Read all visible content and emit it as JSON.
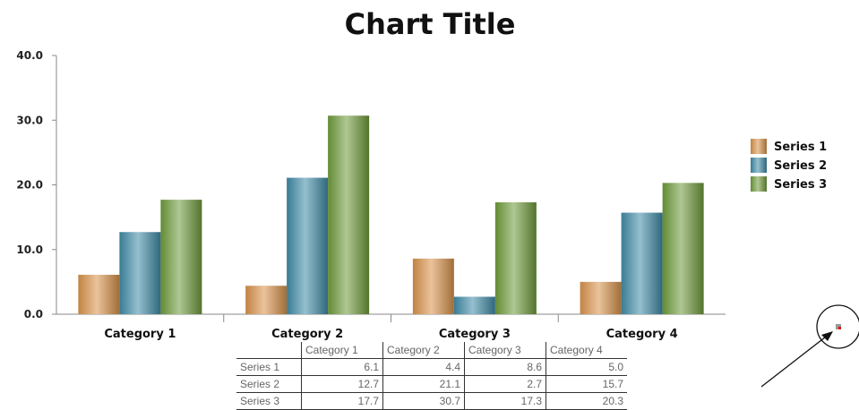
{
  "chart_data": {
    "type": "bar",
    "title": "Chart Title",
    "categories": [
      "Category 1",
      "Category 2",
      "Category 3",
      "Category 4"
    ],
    "series": [
      {
        "name": "Series 1",
        "values": [
          6.1,
          4.4,
          8.6,
          5.0
        ],
        "color": "#d8924a"
      },
      {
        "name": "Series 2",
        "values": [
          12.7,
          21.1,
          2.7,
          15.7
        ],
        "color": "#3f8aa6"
      },
      {
        "name": "Series 3",
        "values": [
          17.7,
          30.7,
          17.3,
          20.3
        ],
        "color": "#6e9a3a"
      }
    ],
    "ylim": [
      0,
      40
    ],
    "yticks": [
      "0.0",
      "10.0",
      "20.0",
      "30.0",
      "40.0"
    ],
    "legend_position": "right",
    "grid": false
  },
  "data_table": {
    "headers": [
      "Category 1",
      "Category 2",
      "Category 3",
      "Category 4"
    ],
    "rows": [
      {
        "label": "Series 1",
        "values": [
          "6.1",
          "4.4",
          "8.6",
          "5.0"
        ]
      },
      {
        "label": "Series 2",
        "values": [
          "12.7",
          "21.1",
          "2.7",
          "15.7"
        ]
      },
      {
        "label": "Series 3",
        "values": [
          "17.7",
          "30.7",
          "17.3",
          "20.3"
        ]
      }
    ]
  }
}
